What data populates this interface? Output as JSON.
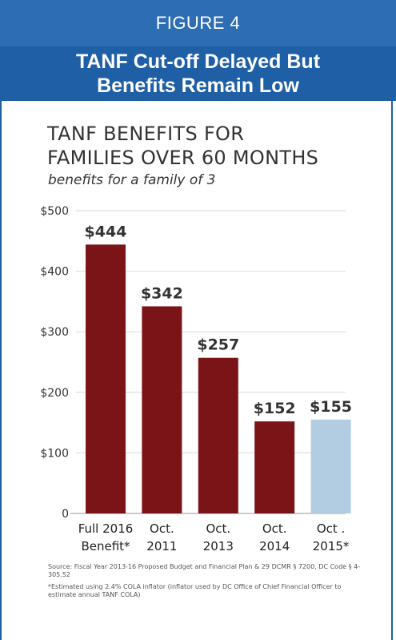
{
  "header": {
    "figure_label": "FIGURE 4",
    "title_line1": "TANF Cut-off Delayed But",
    "title_line2": "Benefits Remain Low"
  },
  "chart_data": {
    "type": "bar",
    "title_line1": "TANF BENEFITS FOR",
    "title_line2": "FAMILIES OVER 60 MONTHS",
    "subtitle": "benefits for a family of 3",
    "categories": [
      [
        "Full 2016",
        "Benefit*"
      ],
      [
        "Oct.",
        "2011"
      ],
      [
        "Oct.",
        "2013"
      ],
      [
        "Oct.",
        "2014"
      ],
      [
        "Oct .",
        "2015*"
      ]
    ],
    "values": [
      444,
      342,
      257,
      152,
      155
    ],
    "data_labels": [
      "$444",
      "$342",
      "$257",
      "$152",
      "$155"
    ],
    "bar_colors": [
      "#7b1416",
      "#7b1416",
      "#7b1416",
      "#7b1416",
      "#b2cde2"
    ],
    "ylim": [
      0,
      500
    ],
    "yticks": [
      0,
      100,
      200,
      300,
      400,
      500
    ],
    "ytick_labels": [
      "0",
      "$100",
      "$200",
      "$300",
      "$400",
      "$500"
    ],
    "grid": true
  },
  "notes": {
    "source": "Source: Fiscal Year 2013-16 Proposed Budget and Financial Plan & 29 DCMR § 7200, DC Code § 4-305.52",
    "footnote": "*Estimated using 2.4% COLA inflator (inflator used by DC Office of Chief Financial Officer to estimate annual TANF COLA)"
  }
}
